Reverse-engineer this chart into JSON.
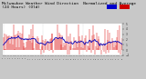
{
  "bg_color": "#c8c8c8",
  "plot_bg": "#ffffff",
  "red_color": "#dd0000",
  "blue_color": "#0000bb",
  "ylim": [
    -1,
    5
  ],
  "n_points": 144,
  "seed": 42,
  "title_color": "#000000",
  "title_fontsize": 3.2,
  "title_text": "Milwaukee Weather Wind Direction  Normalized and Average  (24 Hours) (Old)",
  "grid_color": "#aaaaaa",
  "n_gridlines": 4,
  "y_right_labels": [
    "5",
    "4",
    "3",
    "2",
    "1",
    "0",
    "-1"
  ],
  "legend_blue": "#0000cc",
  "legend_red": "#cc0000"
}
